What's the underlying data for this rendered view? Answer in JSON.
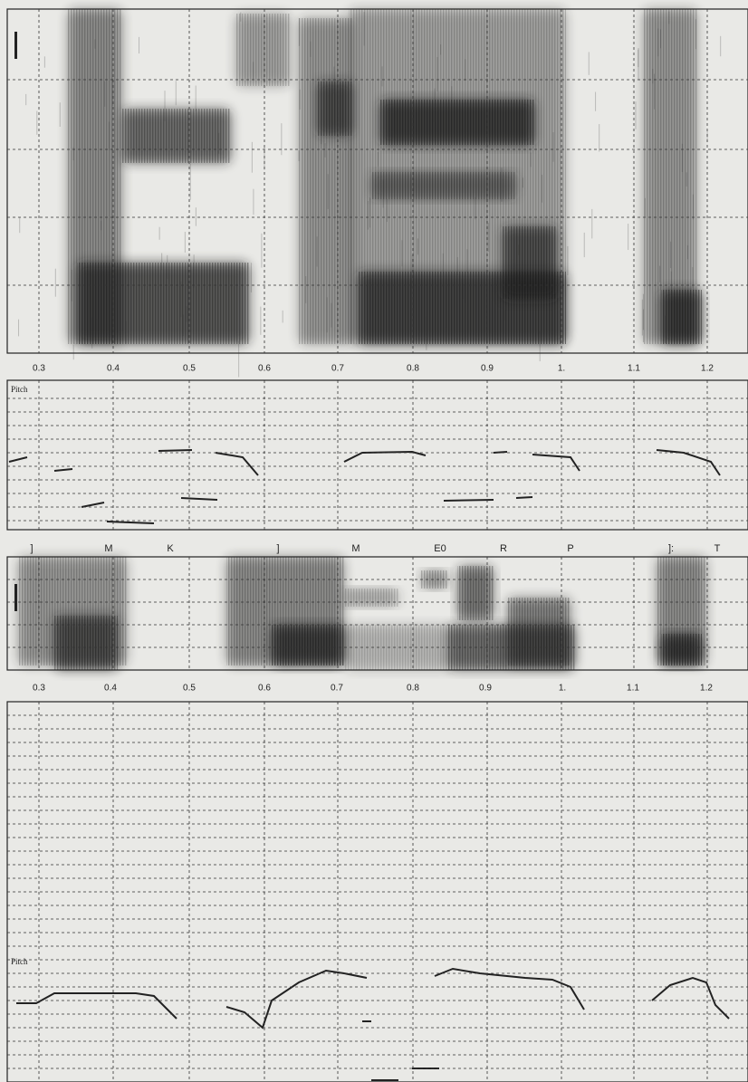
{
  "top": {
    "time_labels": [
      "0.3",
      "0.4",
      "0.5",
      "0.6",
      "0.7",
      "0.8",
      "0.9",
      "1.",
      "1.1",
      "1.2"
    ],
    "pitch_label": "Pitch"
  },
  "segments": [
    "]",
    "M",
    "K",
    "]",
    "M",
    "E0",
    "R",
    "P",
    "]:",
    "T"
  ],
  "bottom": {
    "time_labels": [
      "0.3",
      "0.4",
      "0.5",
      "0.6",
      "0.7",
      "0.8",
      "0.9",
      "1.",
      "1.1",
      "1.2"
    ],
    "pitch_label": "Pitch"
  }
}
